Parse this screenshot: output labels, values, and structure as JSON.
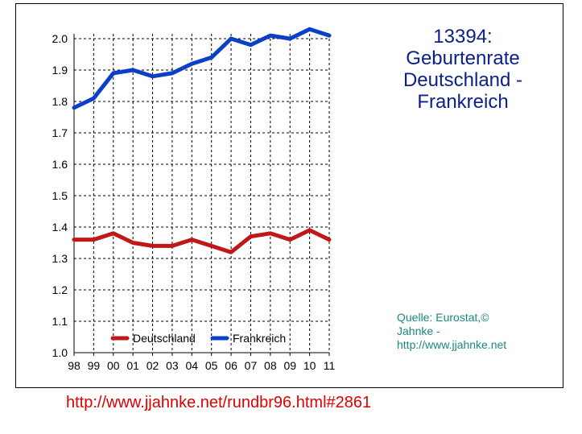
{
  "chart_data": {
    "type": "line",
    "title_lines": [
      "13394:",
      "Geburtenrate",
      "Deutschland -",
      "Frankreich"
    ],
    "categories": [
      "98",
      "99",
      "00",
      "01",
      "02",
      "03",
      "04",
      "05",
      "06",
      "07",
      "08",
      "09",
      "10",
      "11"
    ],
    "ylim": [
      1.0,
      2.0
    ],
    "y_ticks": [
      "2.0",
      "1.9",
      "1.8",
      "1.7",
      "1.6",
      "1.5",
      "1.4",
      "1.3",
      "1.2",
      "1.1",
      "1.0"
    ],
    "grid": true,
    "legend_position": "bottom-inside",
    "series": [
      {
        "name": "Deutschland",
        "color": "#c01818",
        "values": [
          1.36,
          1.36,
          1.38,
          1.35,
          1.34,
          1.34,
          1.36,
          1.34,
          1.32,
          1.37,
          1.38,
          1.36,
          1.39,
          1.36
        ]
      },
      {
        "name": "Frankreich",
        "color": "#0a3fc8",
        "values": [
          1.78,
          1.81,
          1.89,
          1.9,
          1.88,
          1.89,
          1.92,
          1.94,
          2.0,
          1.98,
          2.01,
          2.0,
          2.03,
          2.01
        ]
      }
    ],
    "source_lines": [
      "Quelle: Eurostat,©",
      "Jahnke -",
      "http://www.jjahnke.net"
    ]
  },
  "footer_url": "http://www.jjahnke.net/rundbr96.html#2861"
}
